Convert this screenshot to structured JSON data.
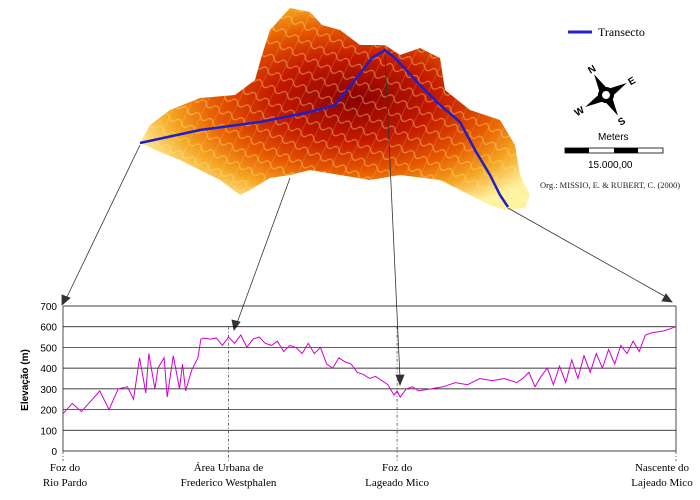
{
  "legend": {
    "line_label": "Transecto",
    "line_color": "#1f1fc8"
  },
  "north_arrow": {
    "letters": {
      "north": "N",
      "east": "E",
      "south": "S",
      "west": "W"
    },
    "icon": "compass-rose-icon"
  },
  "scale_bar": {
    "unit_label": "Meters",
    "value_label": "15.000,00"
  },
  "credit": "Org.: MISSIO, E. & RUBERT, C. (2000)",
  "profile": {
    "y_axis_label": "Elevação (m)",
    "y_ticks": [
      "0",
      "100",
      "200",
      "300",
      "400",
      "500",
      "600",
      "700"
    ],
    "y_range": [
      0,
      700
    ],
    "line_color": "#d000d0",
    "locations": [
      {
        "line1": "Foz do",
        "line2": "Rio Pardo"
      },
      {
        "line1": "Área Urbana de",
        "line2": "Frederico Westphalen"
      },
      {
        "line1": "Foz do",
        "line2": "Lageado Mico"
      },
      {
        "line1": "Nascente do",
        "line2": "Lajeado Mico"
      }
    ]
  },
  "chart_data": {
    "type": "line",
    "title": "",
    "xlabel": "",
    "ylabel": "Elevação (m)",
    "ylim": [
      0,
      700
    ],
    "grid": true,
    "x_range": [
      0,
      100
    ],
    "x_markers": [
      {
        "label": "Foz do Rio Pardo",
        "x": 0
      },
      {
        "label": "Área Urbana de Frederico Westphalen",
        "x": 27
      },
      {
        "label": "Foz do Lageado Mico",
        "x": 54.5
      },
      {
        "label": "Nascente do Lajeado Mico",
        "x": 100
      }
    ],
    "series": [
      {
        "x": [
          0,
          1.5,
          3,
          4.5,
          6,
          7.5,
          9,
          10.5,
          11.5,
          12.5,
          13.5,
          14,
          15,
          15.5,
          16.5,
          17,
          18,
          19,
          19.5,
          20,
          21,
          22,
          22.5,
          23,
          24,
          25,
          26,
          27,
          28,
          29,
          30,
          31,
          32,
          33,
          34,
          35,
          36,
          37,
          38,
          39,
          40,
          41,
          42,
          43,
          44,
          45,
          46,
          47,
          48,
          49,
          50,
          51,
          52,
          53,
          54,
          54.5,
          55,
          56,
          57,
          58,
          60,
          62,
          64,
          66,
          68,
          70,
          72,
          74,
          75,
          76,
          77,
          78,
          79,
          80,
          81,
          82,
          83,
          84,
          85,
          86,
          87,
          88,
          89,
          90,
          91,
          92,
          93,
          94,
          95,
          96,
          97,
          98,
          99,
          100
        ],
        "y": [
          180,
          230,
          190,
          240,
          290,
          200,
          300,
          310,
          250,
          450,
          280,
          470,
          300,
          400,
          450,
          260,
          460,
          300,
          420,
          290,
          390,
          450,
          540,
          545,
          540,
          545,
          510,
          550,
          520,
          560,
          500,
          540,
          550,
          520,
          510,
          530,
          480,
          510,
          500,
          470,
          520,
          470,
          500,
          420,
          400,
          450,
          430,
          420,
          380,
          370,
          350,
          360,
          340,
          320,
          270,
          290,
          260,
          300,
          310,
          290,
          300,
          310,
          330,
          320,
          350,
          340,
          350,
          330,
          350,
          380,
          310,
          360,
          400,
          320,
          410,
          330,
          440,
          350,
          460,
          380,
          470,
          400,
          490,
          420,
          510,
          470,
          530,
          480,
          560,
          570,
          575,
          580,
          590,
          600
        ]
      }
    ]
  }
}
